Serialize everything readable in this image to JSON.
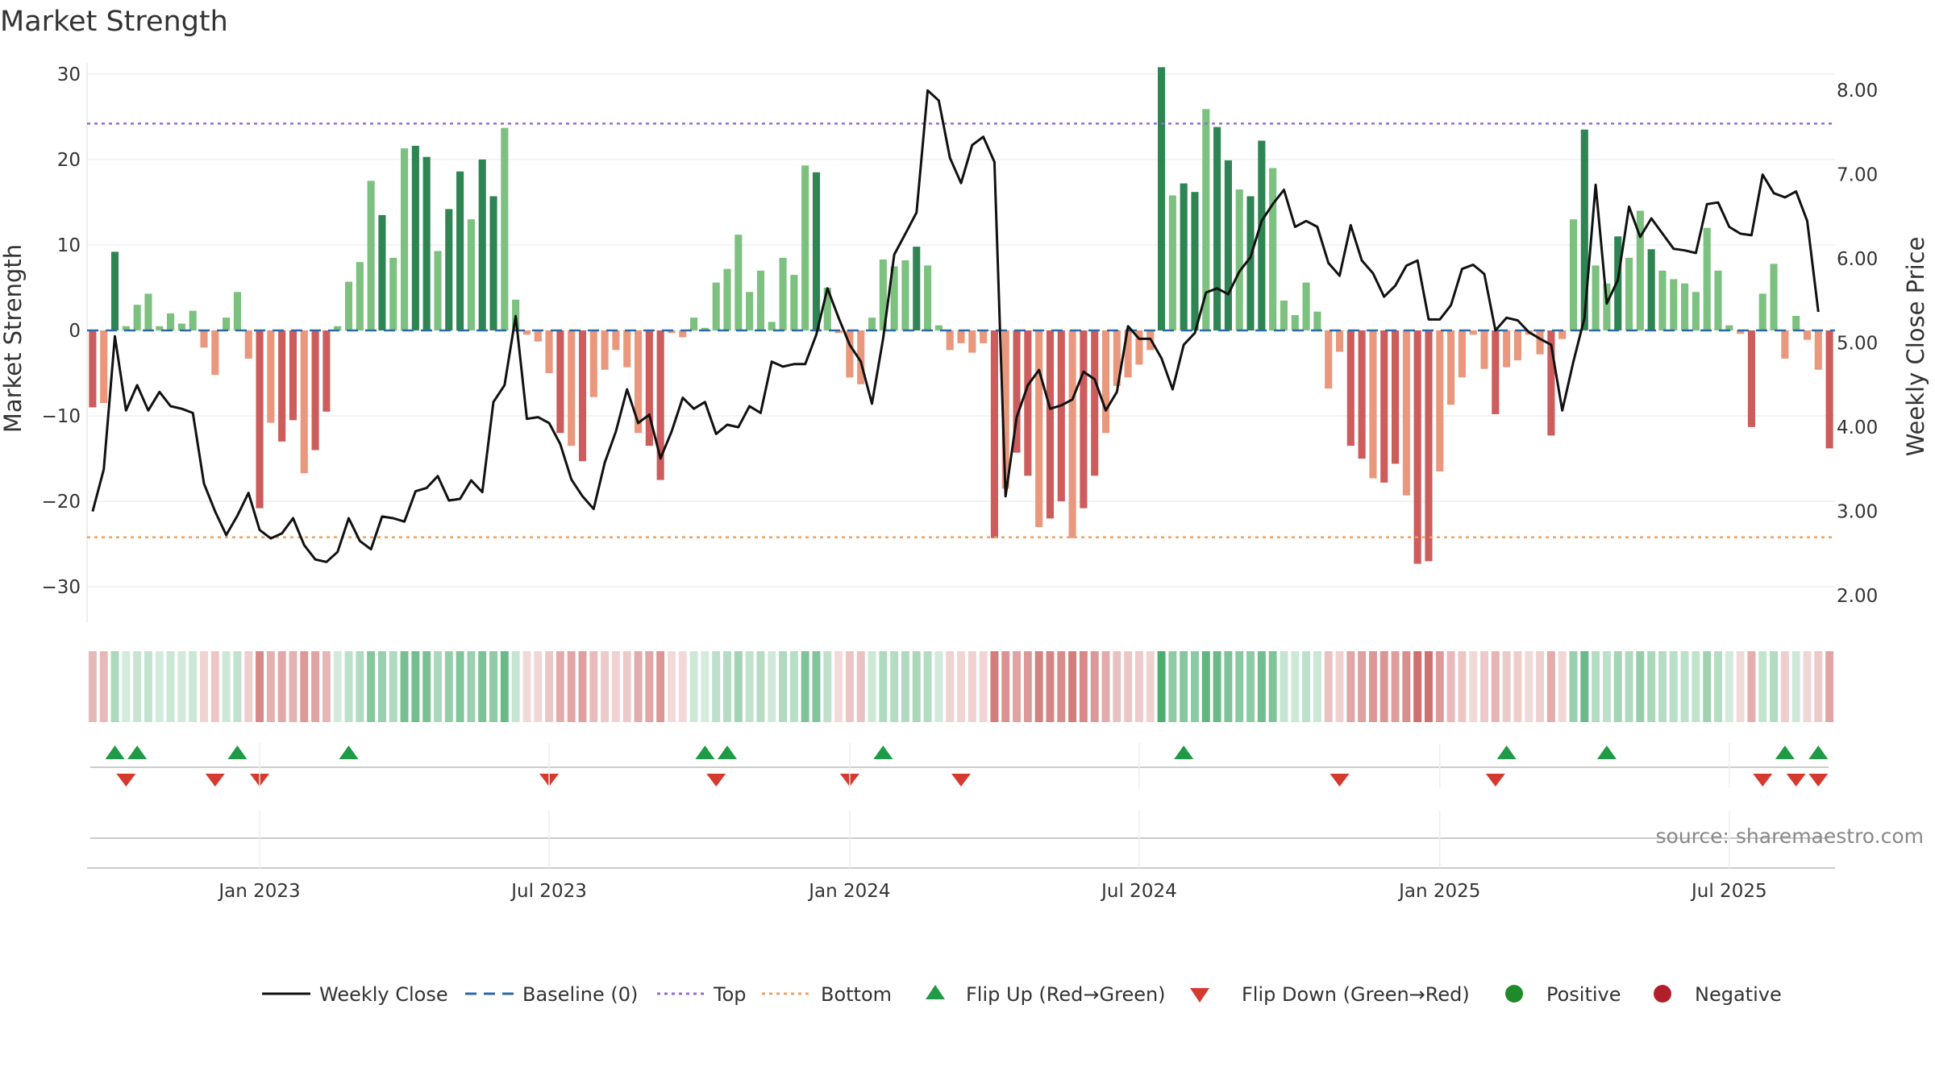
{
  "chart_data": {
    "type": "bar",
    "title": "Market Strength",
    "ylabel": "Market Strength",
    "y2label": "Weekly Close Price",
    "ylim": [
      -33,
      33
    ],
    "y2lim": [
      1.8,
      8.5
    ],
    "yticks": [
      30,
      20,
      10,
      0,
      -10,
      -20,
      -30
    ],
    "yticklabels": [
      "30",
      "20",
      "10",
      "0",
      "−10",
      "−20",
      "−30"
    ],
    "y2ticks": [
      8,
      7,
      6,
      5,
      4,
      3,
      2
    ],
    "y2ticklabels": [
      "8.00",
      "7.00",
      "6.00",
      "5.00",
      "4.00",
      "3.00",
      "2.00"
    ],
    "top_line": 24.2,
    "bottom_line": -24.2,
    "baseline": 0,
    "xticks": [
      15,
      41,
      68,
      94,
      121,
      147
    ],
    "xticklabels": [
      "Jan 2023",
      "Jul 2023",
      "Jan 2024",
      "Jul 2024",
      "Jan 2025",
      "Jul 2025"
    ],
    "strength": [
      -9,
      -8.5,
      9.2,
      0.5,
      3,
      4.3,
      0.5,
      2,
      0.8,
      2.3,
      -2,
      -5.2,
      1.5,
      4.5,
      -3.3,
      -20.8,
      -10.8,
      -13,
      -10.5,
      -16.7,
      -14,
      -9.5,
      0.5,
      5.7,
      8,
      17.5,
      13.5,
      8.5,
      21.3,
      21.6,
      20.3,
      9.3,
      14.2,
      18.6,
      13,
      20,
      15.7,
      23.7,
      3.6,
      -0.5,
      -1.3,
      -5,
      -12,
      -13.5,
      -15.3,
      -7.8,
      -4.6,
      -2.3,
      -4.3,
      -12,
      -13.5,
      -17.5,
      -0.3,
      -0.8,
      1.5,
      0.3,
      5.6,
      7.2,
      11.2,
      4.5,
      7,
      1,
      8.5,
      6.5,
      19.3,
      18.5,
      5,
      -0.3,
      -5.5,
      -6.3,
      1.5,
      8.3,
      7.5,
      8.2,
      9.8,
      7.6,
      0.6,
      -2.3,
      -1.5,
      -2.6,
      -1.5,
      -24.3,
      -18.5,
      -14.3,
      -17,
      -23,
      -22,
      -20,
      -24.3,
      -20.8,
      -17,
      -12,
      -6.5,
      -5.5,
      -4,
      -2.3,
      30.8,
      15.8,
      17.2,
      16.2,
      25.9,
      23.8,
      19.9,
      16.5,
      15.7,
      22.2,
      19,
      3.5,
      1.8,
      5.6,
      2.2,
      -6.8,
      -2.5,
      -13.5,
      -15,
      -17.3,
      -17.8,
      -15.6,
      -19.3,
      -27.3,
      -27,
      -16.5,
      -8.7,
      -5.5,
      -0.5,
      -4.5,
      -9.8,
      -4.3,
      -3.5,
      -0.5,
      -2.8,
      -12.3,
      -1,
      13,
      23.5,
      7.6,
      5.5,
      11,
      8.5,
      14,
      9.5,
      7,
      6,
      5.5,
      4.5,
      12,
      7,
      0.6,
      -0.4,
      -11.3,
      4.3,
      7.8,
      -3.3,
      1.7,
      -1.1,
      -4.6,
      -13.8
    ],
    "weekly_close": [
      3.0,
      3.5,
      5.08,
      4.2,
      4.5,
      4.2,
      4.42,
      4.25,
      4.22,
      4.17,
      3.33,
      3.0,
      2.72,
      2.95,
      3.22,
      2.78,
      2.68,
      2.74,
      2.92,
      2.6,
      2.43,
      2.4,
      2.52,
      2.92,
      2.65,
      2.55,
      2.94,
      2.92,
      2.88,
      3.24,
      3.28,
      3.42,
      3.13,
      3.15,
      3.37,
      3.23,
      4.3,
      4.5,
      5.32,
      4.1,
      4.12,
      4.05,
      3.8,
      3.38,
      3.18,
      3.03,
      3.58,
      3.95,
      4.45,
      4.05,
      4.15,
      3.63,
      3.95,
      4.35,
      4.22,
      4.3,
      3.92,
      4.03,
      4.0,
      4.25,
      4.17,
      4.78,
      4.72,
      4.75,
      4.75,
      5.1,
      5.65,
      5.3,
      4.98,
      4.78,
      4.28,
      5.05,
      6.05,
      6.3,
      6.55,
      8.0,
      7.88,
      7.2,
      6.9,
      7.35,
      7.45,
      7.15,
      3.18,
      4.12,
      4.5,
      4.68,
      4.22,
      4.26,
      4.33,
      4.66,
      4.57,
      4.2,
      4.42,
      5.2,
      5.05,
      5.05,
      4.82,
      4.45,
      4.98,
      5.12,
      5.6,
      5.65,
      5.58,
      5.85,
      6.02,
      6.45,
      6.65,
      6.82,
      6.38,
      6.45,
      6.38,
      5.95,
      5.8,
      6.4,
      5.98,
      5.83,
      5.55,
      5.68,
      5.92,
      5.98,
      5.28,
      5.28,
      5.45,
      5.88,
      5.93,
      5.82,
      5.15,
      5.3,
      5.27,
      5.13,
      5.05,
      4.98,
      4.2,
      4.78,
      5.3,
      6.88,
      5.47,
      5.75,
      6.62,
      6.26,
      6.48,
      6.3,
      6.12,
      6.1,
      6.07,
      6.65,
      6.67,
      6.38,
      6.3,
      6.28,
      7.0,
      6.78,
      6.73,
      6.8,
      6.45,
      5.37
    ],
    "flip_up": [
      2,
      4,
      13,
      23,
      55,
      57,
      71,
      98,
      127,
      136,
      152,
      155
    ],
    "flip_down": [
      3,
      11,
      15,
      41,
      56,
      68,
      78,
      112,
      126,
      150,
      153,
      155
    ],
    "legend": [
      "Weekly Close",
      "Baseline (0)",
      "Top",
      "Bottom",
      "Flip Up (Red→Green)",
      "Flip Down (Green→Red)",
      "Positive",
      "Negative"
    ],
    "source": "source: sharemaestro.com"
  },
  "colors": {
    "pos_strong": "#2e8553",
    "pos_weak": "#7cc17f",
    "neg_strong": "#cd5c5c",
    "neg_weak": "#e9987d",
    "close_line": "#111111",
    "baseline": "#2a6aa8",
    "top": "#9b6ad0",
    "bottom": "#f0a060",
    "flip_up": "#1f9a46",
    "flip_down": "#d63a2f",
    "positive_dot": "#1f8a2a",
    "negative_dot": "#b0202a",
    "grid": "#e8e8e8"
  }
}
